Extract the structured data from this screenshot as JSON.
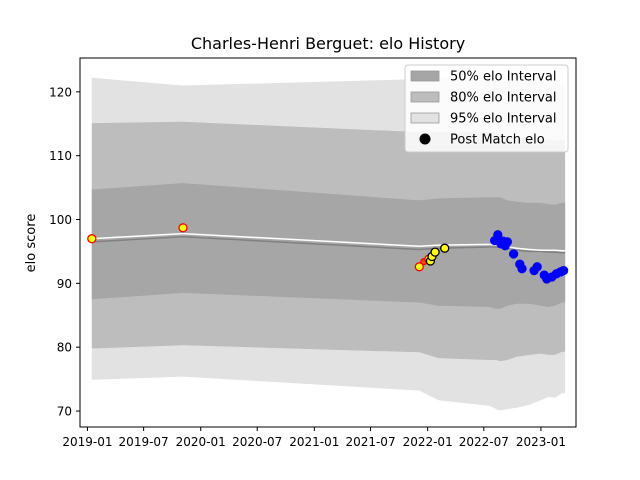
{
  "chart_data": {
    "type": "line",
    "title": "Charles-Henri Berguet: elo History",
    "xlabel": "",
    "ylabel": "elo score",
    "xlim": [
      "2018-12-08",
      "2023-04-24"
    ],
    "ylim": [
      67.5,
      125.3
    ],
    "x_ticks": [
      "2019-01",
      "2019-07",
      "2020-01",
      "2020-07",
      "2021-01",
      "2021-07",
      "2022-01",
      "2022-07",
      "2023-01"
    ],
    "x_tick_dates": [
      "2019-01-01",
      "2019-07-01",
      "2020-01-01",
      "2020-07-01",
      "2021-01-01",
      "2021-07-01",
      "2022-01-01",
      "2022-07-01",
      "2023-01-01"
    ],
    "y_ticks": [
      70,
      80,
      90,
      100,
      110,
      120
    ],
    "grid": false,
    "legend_position": "top-right",
    "legend": [
      {
        "label": "50% elo Interval",
        "key": "band50"
      },
      {
        "label": "80% elo Interval",
        "key": "band80"
      },
      {
        "label": "95% elo Interval",
        "key": "band95"
      },
      {
        "label": "Post Match elo",
        "key": "marker"
      }
    ],
    "colors": {
      "band50": "#a6a6a6",
      "band80": "#bdbdbd",
      "band95": "#e2e2e2",
      "mean_line": "#808080",
      "smooth_line": "#ffffff",
      "marker_legend": "#000000",
      "marker_yellow": "#ffff00",
      "marker_red_edge": "#ff0000",
      "marker_black_edge": "#000000",
      "marker_orange": "#ff4500",
      "marker_blue": "#0000ff"
    },
    "series": {
      "dates": [
        "2019-01-15",
        "2019-11-05",
        "2021-12-05",
        "2022-02-05",
        "2022-07-20",
        "2022-08-10",
        "2022-08-22",
        "2022-09-15",
        "2022-10-15",
        "2022-11-25",
        "2023-01-01",
        "2023-01-25",
        "2023-02-15",
        "2023-03-10",
        "2023-03-20"
      ],
      "mean": [
        96.5,
        97.3,
        95.3,
        95.5,
        95.7,
        95.7,
        95.7,
        95.5,
        95.2,
        95.0,
        95.0,
        94.9,
        94.9,
        94.8,
        94.8
      ],
      "smooth": [
        97.0,
        97.8,
        95.8,
        96.0,
        96.1,
        96.0,
        95.9,
        95.7,
        95.5,
        95.3,
        95.2,
        95.2,
        95.2,
        95.1,
        95.1
      ],
      "band50_low": [
        87.5,
        88.5,
        87.0,
        86.5,
        86.3,
        86.0,
        86.0,
        86.5,
        86.8,
        86.8,
        86.5,
        86.3,
        86.5,
        87.0,
        87.0
      ],
      "band50_high": [
        104.7,
        105.7,
        103.0,
        103.3,
        103.5,
        103.5,
        103.5,
        103.0,
        102.8,
        102.6,
        102.6,
        102.4,
        102.3,
        102.6,
        102.6
      ],
      "band80_low": [
        79.8,
        80.3,
        79.2,
        78.3,
        78.0,
        78.0,
        77.8,
        78.0,
        78.5,
        78.8,
        79.0,
        78.8,
        78.8,
        79.3,
        79.3
      ],
      "band80_high": [
        115.1,
        115.3,
        113.7,
        113.7,
        113.8,
        113.5,
        113.3,
        113.0,
        112.8,
        112.8,
        112.6,
        112.6,
        112.3,
        112.5,
        112.5
      ],
      "band95_low": [
        74.9,
        75.4,
        73.2,
        71.7,
        70.8,
        70.3,
        70.1,
        70.3,
        70.5,
        71.0,
        71.7,
        72.2,
        72.1,
        72.8,
        72.8
      ],
      "band95_high": [
        122.2,
        121.0,
        122.0,
        122.3,
        122.3,
        122.0,
        121.8,
        121.7,
        121.6,
        121.6,
        121.5,
        121.3,
        121.1,
        121.2,
        121.2
      ]
    },
    "points": [
      {
        "date": "2019-01-15",
        "elo": 97.0,
        "style": "yellow-red"
      },
      {
        "date": "2019-11-05",
        "elo": 98.7,
        "style": "yellow-red"
      },
      {
        "date": "2021-12-05",
        "elo": 92.6,
        "style": "yellow-red"
      },
      {
        "date": "2021-12-20",
        "elo": 93.4,
        "style": "orange-red"
      },
      {
        "date": "2022-01-05",
        "elo": 93.8,
        "style": "yellow-red"
      },
      {
        "date": "2022-01-10",
        "elo": 93.5,
        "style": "yellow-black"
      },
      {
        "date": "2022-01-15",
        "elo": 94.2,
        "style": "yellow-black"
      },
      {
        "date": "2022-01-25",
        "elo": 94.9,
        "style": "yellow-black"
      },
      {
        "date": "2022-02-25",
        "elo": 95.5,
        "style": "yellow-black"
      },
      {
        "date": "2022-08-05",
        "elo": 96.7,
        "style": "blue"
      },
      {
        "date": "2022-08-15",
        "elo": 97.6,
        "style": "blue"
      },
      {
        "date": "2022-08-25",
        "elo": 96.2,
        "style": "blue"
      },
      {
        "date": "2022-09-01",
        "elo": 96.6,
        "style": "blue"
      },
      {
        "date": "2022-09-08",
        "elo": 95.9,
        "style": "blue"
      },
      {
        "date": "2022-09-15",
        "elo": 96.5,
        "style": "blue"
      },
      {
        "date": "2022-10-05",
        "elo": 94.6,
        "style": "blue"
      },
      {
        "date": "2022-10-25",
        "elo": 93.0,
        "style": "blue"
      },
      {
        "date": "2022-11-01",
        "elo": 92.3,
        "style": "blue"
      },
      {
        "date": "2022-12-10",
        "elo": 92.0,
        "style": "blue"
      },
      {
        "date": "2022-12-20",
        "elo": 92.6,
        "style": "blue"
      },
      {
        "date": "2023-01-12",
        "elo": 91.3,
        "style": "blue"
      },
      {
        "date": "2023-01-20",
        "elo": 90.7,
        "style": "blue"
      },
      {
        "date": "2023-02-05",
        "elo": 91.0,
        "style": "blue"
      },
      {
        "date": "2023-02-20",
        "elo": 91.5,
        "style": "blue"
      },
      {
        "date": "2023-03-05",
        "elo": 91.8,
        "style": "blue"
      },
      {
        "date": "2023-03-15",
        "elo": 92.0,
        "style": "blue"
      }
    ]
  }
}
